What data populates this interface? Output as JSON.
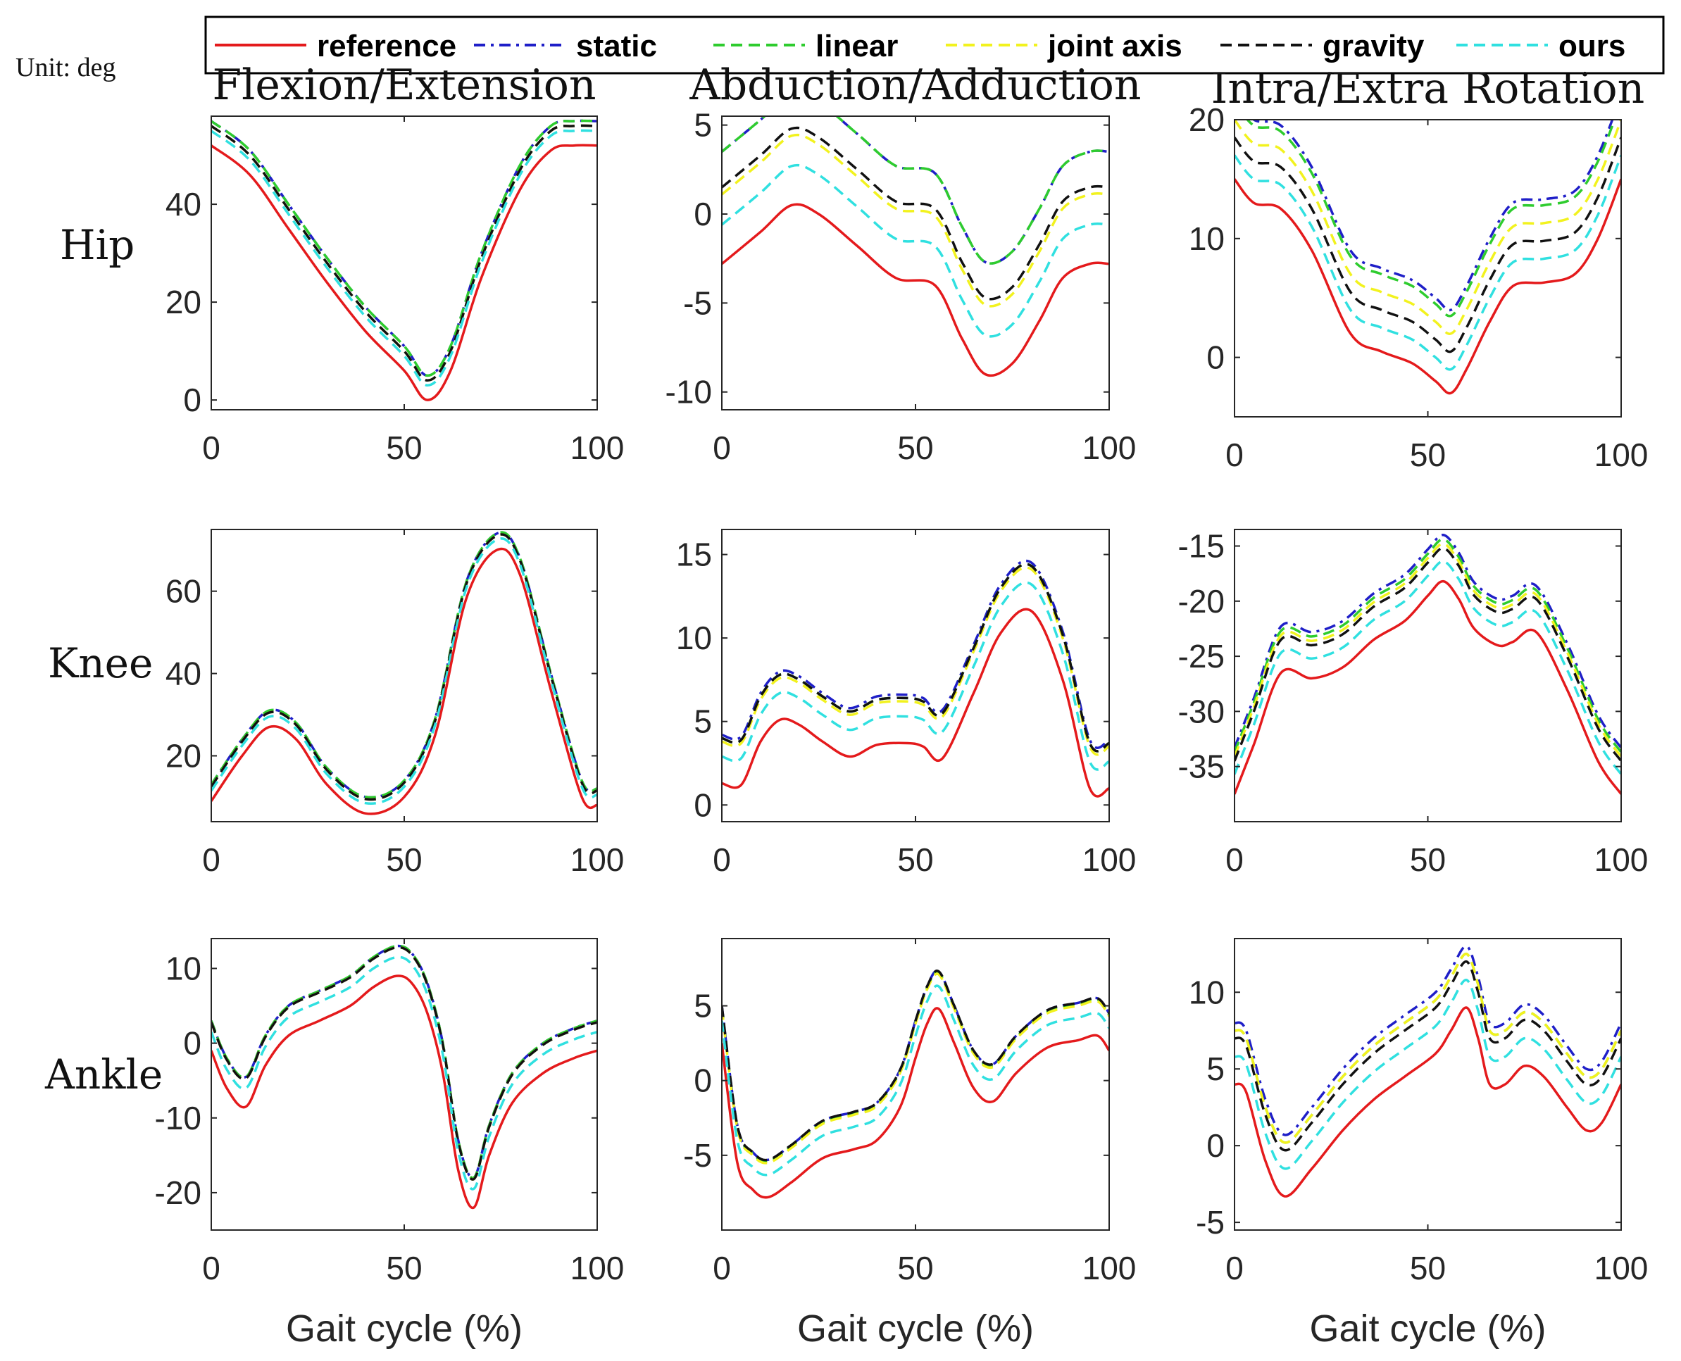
{
  "unit_label": "Unit: deg",
  "column_titles": [
    "Flexion/Extension",
    "Abduction/Adduction",
    "Intra/Extra Rotation"
  ],
  "row_labels": [
    "Hip",
    "Knee",
    "Ankle"
  ],
  "xlabel": "Gait cycle (%)",
  "legend": [
    {
      "name": "reference",
      "color": "#e41a1c",
      "dash": "solid"
    },
    {
      "name": "static",
      "color": "#1f1fc8",
      "dash": "dashdot"
    },
    {
      "name": "linear",
      "color": "#2ecc2e",
      "dash": "dashed"
    },
    {
      "name": "joint axis",
      "color": "#f2f21e",
      "dash": "dashed"
    },
    {
      "name": "gravity",
      "color": "#111111",
      "dash": "dashed"
    },
    {
      "name": "ours",
      "color": "#30e0e0",
      "dash": "dashed"
    }
  ],
  "chart_data": [
    {
      "type": "line",
      "joint": "Hip",
      "title": "Flexion/Extension",
      "xlim": [
        0,
        100
      ],
      "ylim": [
        -2,
        58
      ],
      "xticks": [
        0,
        50,
        100
      ],
      "yticks": [
        0,
        20,
        40
      ],
      "x": [
        0,
        10,
        20,
        30,
        40,
        50,
        56,
        62,
        70,
        80,
        88,
        94,
        100
      ],
      "reference": [
        52,
        46,
        35,
        24,
        14,
        6,
        0,
        6,
        25,
        43,
        51,
        52,
        52
      ],
      "offsets": {
        "static": 5,
        "linear": 5,
        "joint axis": 4,
        "gravity": 4,
        "ours": 3
      }
    },
    {
      "type": "line",
      "joint": "Hip",
      "title": "Abduction/Adduction",
      "xlim": [
        0,
        100
      ],
      "ylim": [
        -11,
        5.5
      ],
      "xticks": [
        0,
        50,
        100
      ],
      "yticks": [
        -10,
        -5,
        0,
        5
      ],
      "x": [
        0,
        10,
        18,
        25,
        35,
        45,
        55,
        62,
        68,
        75,
        82,
        88,
        95,
        100
      ],
      "reference": [
        -2.8,
        -1.0,
        0.5,
        0.0,
        -1.8,
        -3.6,
        -4.0,
        -7.0,
        -9.0,
        -8.4,
        -6.0,
        -3.6,
        -2.8,
        -2.8
      ],
      "offsets": {
        "static": 6.3,
        "linear": 6.3,
        "joint axis": 3.9,
        "gravity": 4.3,
        "ours": 2.2
      }
    },
    {
      "type": "line",
      "joint": "Hip",
      "title": "Intra/Extra Rotation",
      "xlim": [
        0,
        100
      ],
      "ylim": [
        -5,
        20
      ],
      "xticks": [
        0,
        50,
        100
      ],
      "yticks": [
        0,
        10,
        20
      ],
      "x": [
        0,
        5,
        12,
        20,
        30,
        38,
        46,
        52,
        56,
        60,
        66,
        72,
        80,
        88,
        94,
        100
      ],
      "reference": [
        15,
        13,
        12.5,
        9,
        2,
        0.5,
        -0.5,
        -2,
        -3,
        -1,
        3,
        6,
        6.3,
        7,
        10,
        15
      ],
      "offsets": {
        "static": 7,
        "linear": 6.5,
        "joint axis": 5,
        "gravity": 3.5,
        "ours": 2
      }
    },
    {
      "type": "line",
      "joint": "Knee",
      "title": "",
      "xlim": [
        0,
        100
      ],
      "ylim": [
        4,
        75
      ],
      "xticks": [
        0,
        50,
        100
      ],
      "yticks": [
        20,
        40,
        60
      ],
      "x": [
        0,
        8,
        15,
        22,
        30,
        40,
        50,
        58,
        66,
        74,
        80,
        88,
        96,
        100
      ],
      "reference": [
        9,
        20,
        27,
        24,
        13,
        6,
        10,
        25,
        58,
        70,
        64,
        36,
        10,
        8
      ],
      "offsets": {
        "static": 4,
        "linear": 4,
        "joint axis": 3.5,
        "gravity": 3.5,
        "ours": 2.5
      }
    },
    {
      "type": "line",
      "joint": "Knee",
      "title": "",
      "xlim": [
        0,
        100
      ],
      "ylim": [
        -1,
        16.5
      ],
      "xticks": [
        0,
        50,
        100
      ],
      "yticks": [
        0,
        5,
        10,
        15
      ],
      "x": [
        0,
        5,
        10,
        15,
        20,
        26,
        33,
        40,
        48,
        52,
        57,
        65,
        72,
        80,
        88,
        95,
        100
      ],
      "reference": [
        1.3,
        1.2,
        3.8,
        5.1,
        4.8,
        3.8,
        2.9,
        3.6,
        3.7,
        3.5,
        2.8,
        6.7,
        10.3,
        11.6,
        7.5,
        1.0,
        1.0
      ],
      "offsets": {
        "static": 2.9,
        "linear": 2.7,
        "joint axis": 2.5,
        "gravity": 2.7,
        "ours": 1.6
      }
    },
    {
      "type": "line",
      "joint": "Knee",
      "title": "",
      "xlim": [
        0,
        100
      ],
      "ylim": [
        -40,
        -13.5
      ],
      "xticks": [
        0,
        50,
        100
      ],
      "yticks": [
        -35,
        -30,
        -25,
        -20,
        -15
      ],
      "x": [
        0,
        5,
        12,
        20,
        28,
        36,
        44,
        50,
        54,
        58,
        62,
        68,
        72,
        78,
        86,
        94,
        100
      ],
      "reference": [
        -37.5,
        -33,
        -26.5,
        -27,
        -26,
        -23.5,
        -21.8,
        -19.5,
        -18.2,
        -19.8,
        -22.5,
        -24,
        -23.7,
        -22.8,
        -28,
        -34.5,
        -37.5
      ],
      "offsets": {
        "static": 4.2,
        "linear": 3.8,
        "joint axis": 3.4,
        "gravity": 3.0,
        "ours": 1.8
      }
    },
    {
      "type": "line",
      "joint": "Ankle",
      "title": "",
      "xlim": [
        0,
        100
      ],
      "ylim": [
        -25,
        14
      ],
      "xticks": [
        0,
        50,
        100
      ],
      "yticks": [
        -20,
        -10,
        0,
        10
      ],
      "x": [
        0,
        4,
        9,
        14,
        20,
        28,
        36,
        42,
        48,
        52,
        56,
        60,
        64,
        68,
        72,
        78,
        86,
        94,
        100
      ],
      "reference": [
        -1,
        -6,
        -8.5,
        -3,
        1,
        3,
        5,
        7.5,
        9,
        8,
        4,
        -4,
        -17,
        -22,
        -15,
        -8,
        -4,
        -2,
        -1
      ],
      "offsets": {
        "static": 4,
        "linear": 4,
        "joint axis": 3.8,
        "gravity": 3.8,
        "ours": 2.5
      }
    },
    {
      "type": "line",
      "joint": "Ankle",
      "title": "",
      "xlim": [
        0,
        100
      ],
      "ylim": [
        -10,
        9.5
      ],
      "xticks": [
        0,
        50,
        100
      ],
      "yticks": [
        -5,
        0,
        5
      ],
      "x": [
        0,
        4,
        8,
        12,
        18,
        26,
        34,
        40,
        46,
        50,
        53,
        56,
        60,
        65,
        70,
        76,
        84,
        92,
        97,
        100
      ],
      "reference": [
        2.5,
        -5.5,
        -7.3,
        -7.8,
        -6.8,
        -5.2,
        -4.6,
        -4.0,
        -1.8,
        1.5,
        3.8,
        4.8,
        2.5,
        -0.5,
        -1.4,
        0.5,
        2.2,
        2.7,
        3.0,
        2.0
      ],
      "offsets": {
        "static": 2.5,
        "linear": 2.4,
        "joint axis": 2.3,
        "gravity": 2.5,
        "ours": 1.5
      }
    },
    {
      "type": "line",
      "joint": "Ankle",
      "title": "",
      "xlim": [
        0,
        100
      ],
      "ylim": [
        -5.5,
        13.5
      ],
      "xticks": [
        0,
        50,
        100
      ],
      "yticks": [
        -5,
        0,
        5,
        10
      ],
      "x": [
        0,
        3,
        8,
        13,
        20,
        28,
        36,
        44,
        52,
        56,
        60,
        63,
        66,
        70,
        75,
        80,
        86,
        91,
        95,
        100
      ],
      "reference": [
        4,
        3.5,
        -1,
        -3.3,
        -1.5,
        1,
        3,
        4.5,
        6,
        7.5,
        9,
        7,
        4,
        4,
        5.2,
        4.5,
        2.5,
        1.0,
        1.5,
        4.0
      ],
      "offsets": {
        "static": 4.0,
        "linear": 3.5,
        "joint axis": 3.5,
        "gravity": 3.0,
        "ours": 1.8
      }
    }
  ]
}
